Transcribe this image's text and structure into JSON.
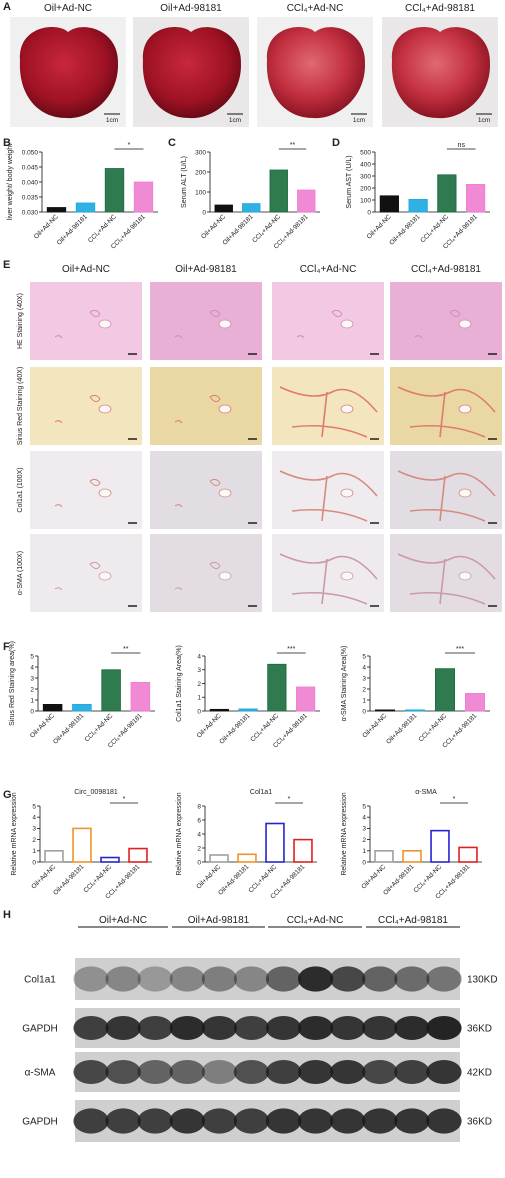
{
  "panel_labels": [
    "A",
    "B",
    "C",
    "D",
    "E",
    "F",
    "G",
    "H"
  ],
  "groups": [
    "Oil+Ad-NC",
    "Oil+Ad-98181",
    "CCl₄+Ad-NC",
    "CCl₄+Ad-98181"
  ],
  "photos": {
    "scale_label": "1cm"
  },
  "chart_data": [
    {
      "type": "bar",
      "ylabel": "liver weight/ body weight",
      "categories": [
        "Oil+Ad-NC",
        "Oil+Ad-98181",
        "CCl₄+Ad-NC",
        "CCl₄+Ad-98181"
      ],
      "values": [
        0.0315,
        0.033,
        0.0445,
        0.04
      ],
      "colors": [
        "#111111",
        "#1ba8e0",
        "#1a6b3c",
        "#f07dd0"
      ],
      "filled": true,
      "ylim": [
        0.03,
        0.05
      ],
      "yticks": [
        {
          "value": 0.03,
          "label": "0.030"
        },
        0.035,
        {
          "value": 0.04,
          "label": "0.040"
        },
        0.045,
        {
          "value": 0.05,
          "label": "0.050"
        }
      ],
      "significance": "*"
    },
    {
      "type": "bar",
      "ylabel": "Serum ALT (U/L)",
      "categories": [
        "Oil+Ad-NC",
        "Oil+Ad-98181",
        "CCl₄+Ad-NC",
        "CCl₄+Ad-98181"
      ],
      "values": [
        35,
        42,
        210,
        110
      ],
      "colors": [
        "#111111",
        "#1ba8e0",
        "#1a6b3c",
        "#f07dd0"
      ],
      "filled": true,
      "ylim": [
        0,
        300
      ],
      "yticks": [
        0,
        100,
        200,
        300
      ],
      "significance": "**"
    },
    {
      "type": "bar",
      "ylabel": "Serum AST (U/L)",
      "categories": [
        "Oil+Ad-NC",
        "Oil+Ad-98181",
        "CCl₄+Ad-NC",
        "CCl₄+Ad-98181"
      ],
      "values": [
        135,
        105,
        310,
        230
      ],
      "colors": [
        "#111111",
        "#1ba8e0",
        "#1a6b3c",
        "#f07dd0"
      ],
      "filled": true,
      "ylim": [
        0,
        500
      ],
      "yticks": [
        0,
        100,
        200,
        300,
        400,
        500
      ],
      "significance": "ns"
    },
    {
      "type": "bar",
      "ylabel": "Sirus Red Staining area(%)",
      "categories": [
        "Oil+Ad-NC",
        "Oil+Ad-98181",
        "CCl₄+Ad-NC",
        "CCl₄+Ad-98181"
      ],
      "values": [
        0.6,
        0.6,
        3.75,
        2.6
      ],
      "colors": [
        "#111111",
        "#1ba8e0",
        "#1a6b3c",
        "#f07dd0"
      ],
      "filled": true,
      "ylim": [
        0,
        5
      ],
      "yticks": [
        0,
        1,
        2,
        3,
        4,
        5
      ],
      "significance": "**"
    },
    {
      "type": "bar",
      "ylabel": "Col1a1 Staining Area(%)",
      "categories": [
        "Oil+Ad-NC",
        "Oil+Ad-98181",
        "CCl₄+Ad-NC",
        "CCl₄+Ad-98181"
      ],
      "values": [
        0.12,
        0.15,
        3.4,
        1.75
      ],
      "colors": [
        "#111111",
        "#1ba8e0",
        "#1a6b3c",
        "#f07dd0"
      ],
      "filled": true,
      "ylim": [
        0,
        4
      ],
      "yticks": [
        0,
        1,
        2,
        3,
        4
      ],
      "significance": "***"
    },
    {
      "type": "bar",
      "ylabel": "α-SMA Staining Area(%)",
      "categories": [
        "Oil+Ad-NC",
        "Oil+Ad-98181",
        "CCl₄+Ad-NC",
        "CCl₄+Ad-98181"
      ],
      "values": [
        0.1,
        0.1,
        3.85,
        1.6
      ],
      "colors": [
        "#111111",
        "#1ba8e0",
        "#1a6b3c",
        "#f07dd0"
      ],
      "filled": true,
      "ylim": [
        0,
        5
      ],
      "yticks": [
        0,
        1,
        2,
        3,
        4,
        5
      ],
      "significance": "***"
    },
    {
      "type": "bar",
      "title": "Circ_0098181",
      "ylabel": "Relative mRNA expression",
      "categories": [
        "Oil+Ad-NC",
        "Oil+Ad-98181",
        "CCl₄+Ad-NC",
        "CCl₄+Ad-98181"
      ],
      "values": [
        1.0,
        3.0,
        0.4,
        1.2
      ],
      "colors": [
        "#a0a0a0",
        "#f0922b",
        "#2424d0",
        "#e02020"
      ],
      "filled": false,
      "ylim": [
        0,
        5
      ],
      "yticks": [
        0,
        1,
        2,
        3,
        4,
        5
      ],
      "significance": "*"
    },
    {
      "type": "bar",
      "title": "Col1a1",
      "ylabel": "Relative mRNA expression",
      "categories": [
        "Oil+Ad-NC",
        "Oil+Ad-98181",
        "CCl₄+Ad-NC",
        "CCl₄+Ad-98181"
      ],
      "values": [
        1.0,
        1.1,
        5.5,
        3.2
      ],
      "colors": [
        "#a0a0a0",
        "#f0922b",
        "#2424d0",
        "#e02020"
      ],
      "filled": false,
      "ylim": [
        0,
        8
      ],
      "yticks": [
        0,
        2,
        4,
        6,
        8
      ],
      "significance": "*"
    },
    {
      "type": "bar",
      "title": "α-SMA",
      "ylabel": "Relative mRNA expression",
      "categories": [
        "Oil+Ad-NC",
        "Oil+Ad-98181",
        "CCl₄+Ad-NC",
        "CCl₄+Ad-98181"
      ],
      "values": [
        1.0,
        1.0,
        2.8,
        1.3
      ],
      "colors": [
        "#a0a0a0",
        "#f0922b",
        "#2424d0",
        "#e02020"
      ],
      "filled": false,
      "ylim": [
        0,
        5
      ],
      "yticks": [
        0,
        1,
        2,
        3,
        4,
        5
      ],
      "significance": "*"
    }
  ],
  "histology": {
    "rows": [
      "HE Staining (40X)",
      "Sirius Red Staining (40X)",
      "Col1a1 (100X)",
      "α-SMA (100X)"
    ]
  },
  "western_blot": {
    "bands": [
      {
        "name": "Col1a1",
        "size": "130KD"
      },
      {
        "name": "GAPDH",
        "size": "36KD"
      },
      {
        "name": "α-SMA",
        "size": "42KD"
      },
      {
        "name": "GAPDH",
        "size": "36KD"
      }
    ]
  }
}
